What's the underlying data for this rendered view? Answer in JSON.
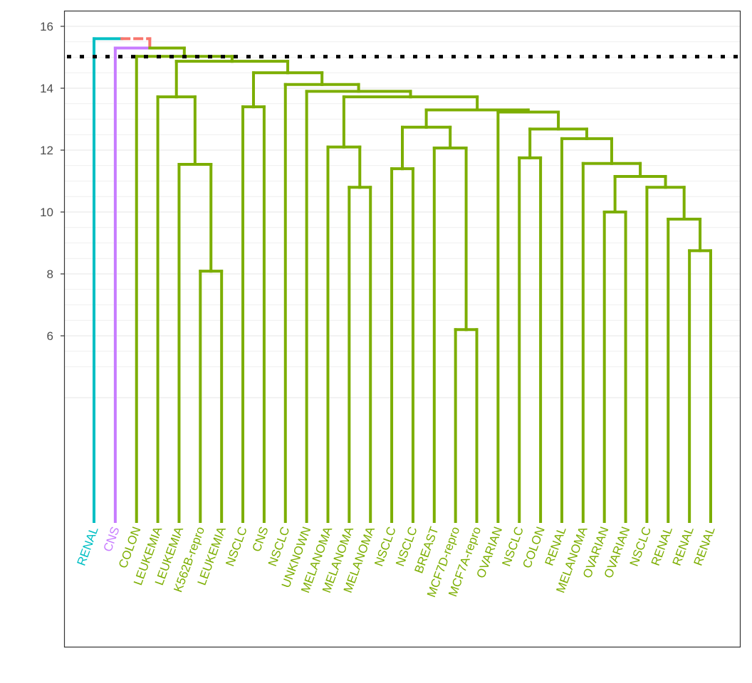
{
  "chart_data": {
    "type": "dendrogram",
    "title": "",
    "xlabel": "",
    "ylabel": "",
    "ylim": [
      0,
      16.5
    ],
    "y_ticks": [
      6,
      8,
      10,
      12,
      14,
      16
    ],
    "grid": true,
    "cut_height": 15.02,
    "colors": {
      "RENAL": "#00BFC4",
      "CNS": "#C77CFF",
      "main": "#7CAE00",
      "above_cut": "#F8766D",
      "cut_line": "#000000"
    },
    "leaves": [
      "RENAL",
      "CNS",
      "COLON",
      "LEUKEMIA",
      "LEUKEMIA",
      "K562B-repro",
      "LEUKEMIA",
      "NSCLC",
      "CNS",
      "NSCLC",
      "UNKNOWN",
      "MELANOMA",
      "MELANOMA",
      "MELANOMA",
      "NSCLC",
      "NSCLC",
      "BREAST",
      "MCF7D-repro",
      "MCF7A-repro",
      "OVARIAN",
      "NSCLC",
      "COLON",
      "RENAL",
      "MELANOMA",
      "OVARIAN",
      "OVARIAN",
      "NSCLC",
      "RENAL",
      "RENAL",
      "RENAL"
    ],
    "leaf_cluster": [
      "RENAL",
      "CNS",
      "main",
      "main",
      "main",
      "main",
      "main",
      "main",
      "main",
      "main",
      "main",
      "main",
      "main",
      "main",
      "main",
      "main",
      "main",
      "main",
      "main",
      "main",
      "main",
      "main",
      "main",
      "main",
      "main",
      "main",
      "main",
      "main",
      "main",
      "main"
    ],
    "tree": {
      "l": 0,
      "h": 15.6,
      "r": {
        "l": 1,
        "h": 15.3,
        "r": {
          "l": 2,
          "h": 15.03,
          "r": {
            "h": 14.87,
            "l": {
              "l": 3,
              "h": 13.72,
              "r": {
                "l": 4,
                "h": 11.54,
                "r": {
                  "l": 5,
                  "r": 6,
                  "h": 8.09
                }
              }
            },
            "r": {
              "h": 14.5,
              "l": {
                "l": 7,
                "r": 8,
                "h": 13.4
              },
              "r": {
                "l": 9,
                "h": 14.12,
                "r": {
                  "l": 10,
                  "h": 13.9,
                  "r": {
                    "h": 13.72,
                    "l": {
                      "l": 11,
                      "h": 12.1,
                      "r": {
                        "l": 12,
                        "r": 13,
                        "h": 10.8
                      }
                    },
                    "r": {
                      "h": 13.3,
                      "l": {
                        "h": 12.74,
                        "l": {
                          "l": 14,
                          "r": 15,
                          "h": 11.4
                        },
                        "r": {
                          "l": 16,
                          "h": 12.07,
                          "r": {
                            "l": 17,
                            "r": 18,
                            "h": 6.2
                          }
                        }
                      },
                      "r": {
                        "l": 19,
                        "h": 13.23,
                        "r": {
                          "h": 12.68,
                          "l": {
                            "l": 20,
                            "r": 21,
                            "h": 11.75
                          },
                          "r": {
                            "l": 22,
                            "h": 12.37,
                            "r": {
                              "l": 23,
                              "h": 11.57,
                              "r": {
                                "h": 11.15,
                                "l": {
                                  "l": 24,
                                  "r": 25,
                                  "h": 10.0
                                },
                                "r": {
                                  "l": 26,
                                  "h": 10.8,
                                  "r": {
                                    "l": 27,
                                    "h": 9.77,
                                    "r": {
                                      "l": 28,
                                      "r": 29,
                                      "h": 8.75
                                    }
                                  }
                                }
                              }
                            }
                          }
                        }
                      }
                    }
                  }
                }
              }
            }
          }
        }
      }
    }
  }
}
